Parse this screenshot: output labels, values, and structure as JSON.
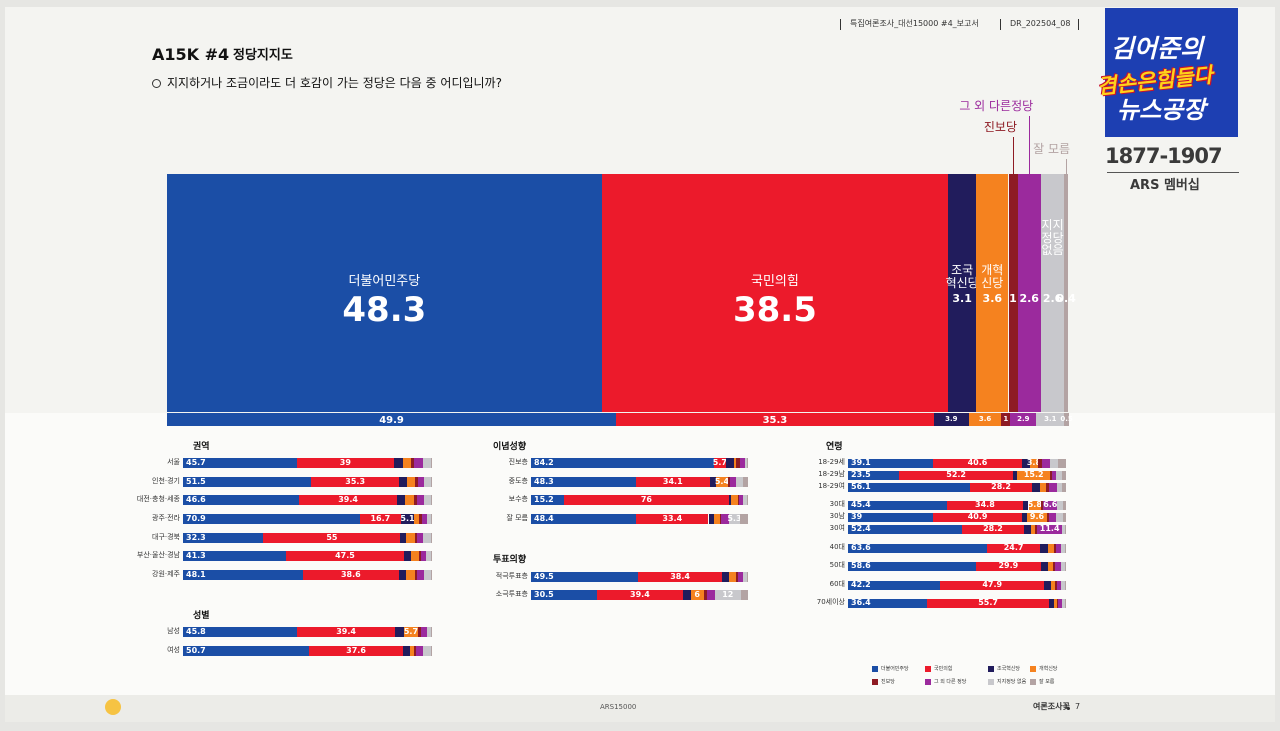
{
  "header": {
    "report": "특집여론조사_대선15000 #4_보고서",
    "code": "DR_202504_08"
  },
  "logo": {
    "line1": "김어준의",
    "line2": "겸손은힘들다",
    "line3": "뉴스공장",
    "phone": "1877-1907",
    "membership": "ARS 멤버십"
  },
  "title": {
    "code": "A15K #4",
    "name": "정당지지도",
    "question": "지지하거나 조금이라도 더 호감이 가는 정당은 다음 중 어디입니까?"
  },
  "chart_data": [
    {
      "type": "stacked-bar",
      "xlim": [
        0,
        100
      ],
      "categories": [
        null,
        null
      ],
      "series": [
        {
          "name": "더불어민주당",
          "label": "더불어민주당",
          "color": "#1b4ea6",
          "values": [
            48.3,
            49.9
          ]
        },
        {
          "name": "국민의힘",
          "label": "국민의힘",
          "color": "#ec1a2b",
          "values": [
            38.5,
            35.3
          ]
        },
        {
          "name": "조국혁신당",
          "label": "조국\n혁신당",
          "color": "#211c5c",
          "values": [
            3.1,
            3.9
          ]
        },
        {
          "name": "개혁신당",
          "label": "개혁\n신당",
          "color": "#f5821f",
          "values": [
            3.6,
            3.6
          ]
        },
        {
          "name": "진보당",
          "label": "진보당",
          "color": "#8e1b24",
          "values": [
            1.0,
            1.0
          ]
        },
        {
          "name": "그 외 다른 정당",
          "label": "그 외 다른정당",
          "color": "#9b2a9d",
          "values": [
            2.6,
            2.9
          ]
        },
        {
          "name": "지지정당 없음",
          "label": "지지\n정당\n없음",
          "color": "#c8c8cc",
          "values": [
            2.6,
            3.1
          ]
        },
        {
          "name": "잘 모름",
          "label": "잘 모름",
          "color": "#b3a3a3",
          "values": [
            0.4,
            0.5
          ]
        }
      ]
    },
    {
      "type": "stacked-bar",
      "title": "권역",
      "xlim": [
        0,
        100
      ],
      "categories": [
        "서울",
        "인천·경기",
        "대전·충청·세종",
        "광주·전라",
        "대구·경북",
        "부산·울산·경남",
        "강원·제주"
      ],
      "series": [
        {
          "values": [
            45.7,
            51.5,
            46.6,
            70.9,
            32.3,
            41.3,
            48.1
          ]
        },
        {
          "values": [
            39.0,
            35.3,
            39.4,
            16.7,
            55.0,
            47.5,
            38.6
          ]
        },
        {
          "values": [
            3.5,
            3.0,
            3.2,
            5.1,
            2.2,
            2.6,
            3.0
          ]
        },
        {
          "values": [
            3.5,
            3.4,
            3.6,
            1.9,
            3.6,
            3.2,
            3.3
          ]
        },
        {
          "values": [
            0.9,
            1.0,
            1.1,
            1.3,
            0.8,
            0.9,
            1.0
          ]
        },
        {
          "values": [
            3.6,
            2.6,
            2.8,
            1.9,
            2.6,
            2.2,
            2.8
          ]
        },
        {
          "values": [
            3.4,
            2.8,
            2.9,
            1.8,
            3.1,
            1.9,
            2.8
          ]
        },
        {
          "values": [
            0.4,
            0.4,
            0.4,
            0.4,
            0.4,
            0.4,
            0.4
          ]
        }
      ]
    },
    {
      "type": "stacked-bar",
      "title": "성별",
      "xlim": [
        0,
        100
      ],
      "categories": [
        "남성",
        "여성"
      ],
      "series": [
        {
          "values": [
            45.8,
            50.7
          ]
        },
        {
          "values": [
            39.4,
            37.6
          ]
        },
        {
          "values": [
            3.5,
            2.7
          ]
        },
        {
          "values": [
            5.7,
            1.6
          ]
        },
        {
          "values": [
            1.0,
            1.0
          ]
        },
        {
          "values": [
            2.5,
            2.7
          ]
        },
        {
          "values": [
            1.7,
            3.3
          ]
        },
        {
          "values": [
            0.4,
            0.4
          ]
        }
      ]
    },
    {
      "type": "stacked-bar",
      "title": "이념성향",
      "xlim": [
        0,
        100
      ],
      "categories": [
        "진보층",
        "중도층",
        "보수층",
        "잘 모름"
      ],
      "series": [
        {
          "values": [
            84.2,
            48.3,
            15.2,
            48.4
          ]
        },
        {
          "values": [
            5.7,
            34.1,
            76.0,
            33.4
          ]
        },
        {
          "values": [
            3.6,
            2.9,
            0.8,
            2.5
          ]
        },
        {
          "values": [
            1.2,
            5.4,
            3.4,
            2.6
          ]
        },
        {
          "values": [
            1.6,
            1.0,
            0.3,
            0.8
          ]
        },
        {
          "values": [
            2.3,
            2.8,
            1.9,
            3.4
          ]
        },
        {
          "values": [
            1.0,
            3.1,
            2.0,
            5.3
          ]
        },
        {
          "values": [
            0.4,
            2.4,
            0.4,
            3.6
          ]
        }
      ]
    },
    {
      "type": "stacked-bar",
      "title": "투표의향",
      "xlim": [
        0,
        100
      ],
      "categories": [
        "적극투표층",
        "소극투표층"
      ],
      "series": [
        {
          "values": [
            49.5,
            30.5
          ]
        },
        {
          "values": [
            38.4,
            39.4
          ]
        },
        {
          "values": [
            3.3,
            3.7
          ]
        },
        {
          "values": [
            3.2,
            6.0
          ]
        },
        {
          "values": [
            1.0,
            1.4
          ]
        },
        {
          "values": [
            2.4,
            3.7
          ]
        },
        {
          "values": [
            1.8,
            12.0
          ]
        },
        {
          "values": [
            0.4,
            3.3
          ]
        }
      ]
    },
    {
      "type": "stacked-bar",
      "title": "연령",
      "xlim": [
        0,
        100
      ],
      "categories": [
        "18-29세",
        "18-29남",
        "18-29여",
        "30대",
        "30남",
        "30여",
        "40대",
        "50대",
        "60대",
        "70세이상"
      ],
      "series": [
        {
          "values": [
            39.1,
            23.5,
            56.1,
            45.4,
            39.0,
            52.4,
            63.6,
            58.6,
            42.2,
            36.4
          ]
        },
        {
          "values": [
            40.6,
            52.2,
            28.2,
            34.8,
            40.9,
            28.2,
            24.7,
            29.9,
            47.9,
            55.7
          ]
        },
        {
          "values": [
            3.7,
            1.9,
            3.6,
            2.6,
            2.0,
            3.2,
            3.5,
            3.4,
            2.9,
            2.4
          ]
        },
        {
          "values": [
            3.8,
            15.2,
            2.9,
            5.8,
            9.6,
            1.9,
            2.5,
            2.2,
            2.1,
            1.3
          ]
        },
        {
          "values": [
            1.7,
            0.6,
            1.6,
            0.9,
            0.7,
            1.1,
            1.2,
            1.0,
            0.8,
            0.6
          ]
        },
        {
          "values": [
            3.7,
            2.2,
            3.5,
            6.6,
            3.2,
            11.4,
            2.3,
            2.6,
            1.9,
            1.6
          ]
        },
        {
          "values": [
            3.7,
            2.5,
            2.4,
            2.5,
            3.0,
            1.2,
            1.8,
            1.9,
            1.8,
            1.6
          ]
        },
        {
          "values": [
            3.7,
            1.9,
            1.7,
            1.4,
            1.6,
            0.6,
            0.4,
            0.4,
            0.4,
            0.4
          ]
        }
      ]
    }
  ],
  "footer": {
    "center": "ARS15000",
    "brand": "여론조사꽃",
    "page": "7"
  }
}
